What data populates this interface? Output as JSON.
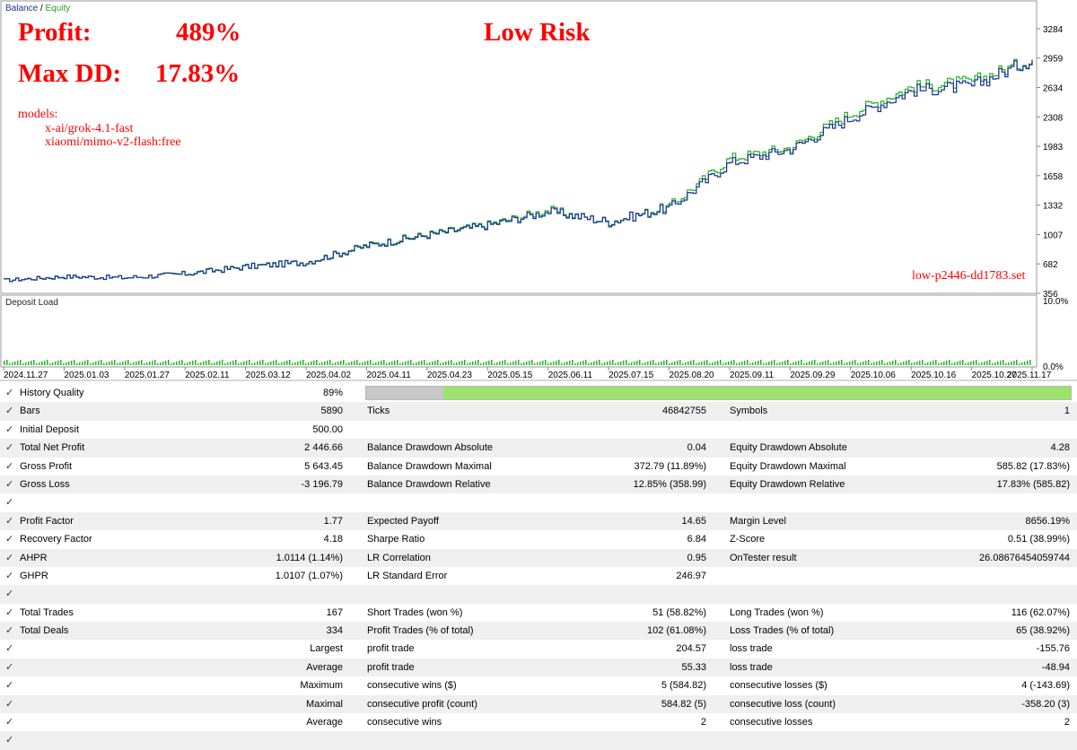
{
  "chart": {
    "legend": {
      "balance": "Balance",
      "separator": " / ",
      "equity": "Equity"
    },
    "profit_label": "Profit:",
    "profit_value": "489%",
    "maxdd_label": "Max DD:",
    "maxdd_value": "17.83%",
    "risk_label": "Low Risk",
    "models_title": "models:",
    "models": [
      "x-ai/grok-4.1-fast",
      "xiaomi/mimo-v2-flash:free"
    ],
    "setfile": "low-p2446-dd1783.set",
    "y_ticks": [
      "3284",
      "2959",
      "2634",
      "2308",
      "1983",
      "1658",
      "1332",
      "1007",
      "682",
      "356"
    ],
    "deposit_load_title": "Deposit Load",
    "deposit_ticks": [
      "10.0%",
      "0.0%"
    ],
    "x_ticks": [
      "2024.11.27",
      "2025.01.03",
      "2025.01.27",
      "2025.02.11",
      "2025.03.12",
      "2025.04.02",
      "2025.04.11",
      "2025.04.23",
      "2025.05.15",
      "2025.06.11",
      "2025.07.15",
      "2025.08.20",
      "2025.09.11",
      "2025.09.29",
      "2025.10.06",
      "2025.10.16",
      "2025.10.27",
      "2025.11.17"
    ],
    "colors": {
      "balance": "#1f2f9c",
      "equity": "#22b422",
      "grid": "#d8d8d8",
      "deposit": "#22b422"
    }
  },
  "chart_data": {
    "type": "line",
    "title": "",
    "x": [
      "2024.11.27",
      "2025.01.03",
      "2025.01.27",
      "2025.02.11",
      "2025.03.12",
      "2025.04.02",
      "2025.04.11",
      "2025.04.23",
      "2025.05.15",
      "2025.06.11",
      "2025.07.15",
      "2025.08.20",
      "2025.09.11",
      "2025.09.29",
      "2025.10.06",
      "2025.10.16",
      "2025.10.27",
      "2025.11.17"
    ],
    "series": [
      {
        "name": "Balance",
        "values": [
          500,
          540,
          530,
          570,
          650,
          700,
          880,
          1000,
          1110,
          1260,
          1150,
          1300,
          1800,
          1950,
          2300,
          2600,
          2650,
          2946
        ]
      },
      {
        "name": "Equity",
        "values": [
          500,
          545,
          528,
          575,
          655,
          705,
          890,
          1010,
          1120,
          1280,
          1140,
          1320,
          1850,
          1970,
          2350,
          2640,
          2700,
          2950
        ]
      }
    ],
    "ylim": [
      356,
      3284
    ],
    "grid": false,
    "legend": "top-left"
  },
  "stats": {
    "history_quality": {
      "label": "History Quality",
      "value": "89%",
      "fraction": 0.89
    },
    "rows": [
      {
        "c1": [
          "Bars",
          "5890"
        ],
        "c2": [
          "Ticks",
          "46842755"
        ],
        "c3": [
          "Symbols",
          "1"
        ]
      },
      {
        "c1": [
          "Initial Deposit",
          "500.00"
        ],
        "c2": [
          "",
          ""
        ],
        "c3": [
          "",
          ""
        ]
      },
      {
        "c1": [
          "Total Net Profit",
          "2 446.66"
        ],
        "c2": [
          "Balance Drawdown Absolute",
          "0.04"
        ],
        "c3": [
          "Equity Drawdown Absolute",
          "4.28"
        ]
      },
      {
        "c1": [
          "Gross Profit",
          "5 643.45"
        ],
        "c2": [
          "Balance Drawdown Maximal",
          "372.79 (11.89%)"
        ],
        "c3": [
          "Equity Drawdown Maximal",
          "585.82 (17.83%)"
        ]
      },
      {
        "c1": [
          "Gross Loss",
          "-3 196.79"
        ],
        "c2": [
          "Balance Drawdown Relative",
          "12.85% (358.99)"
        ],
        "c3": [
          "Equity Drawdown Relative",
          "17.83% (585.82)"
        ]
      },
      {
        "c1": [
          "",
          ""
        ],
        "c2": [
          "",
          ""
        ],
        "c3": [
          "",
          ""
        ]
      },
      {
        "c1": [
          "Profit Factor",
          "1.77"
        ],
        "c2": [
          "Expected Payoff",
          "14.65"
        ],
        "c3": [
          "Margin Level",
          "8656.19%"
        ]
      },
      {
        "c1": [
          "Recovery Factor",
          "4.18"
        ],
        "c2": [
          "Sharpe Ratio",
          "6.84"
        ],
        "c3": [
          "Z-Score",
          "0.51 (38.99%)"
        ]
      },
      {
        "c1": [
          "AHPR",
          "1.0114 (1.14%)"
        ],
        "c2": [
          "LR Correlation",
          "0.95"
        ],
        "c3": [
          "OnTester result",
          "26.08676454059744"
        ]
      },
      {
        "c1": [
          "GHPR",
          "1.0107 (1.07%)"
        ],
        "c2": [
          "LR Standard Error",
          "246.97"
        ],
        "c3": [
          "",
          ""
        ]
      },
      {
        "c1": [
          "",
          ""
        ],
        "c2": [
          "",
          ""
        ],
        "c3": [
          "",
          ""
        ]
      },
      {
        "c1": [
          "Total Trades",
          "167"
        ],
        "c2": [
          "Short Trades (won %)",
          "51 (58.82%)"
        ],
        "c3": [
          "Long Trades (won %)",
          "116 (62.07%)"
        ]
      },
      {
        "c1": [
          "Total Deals",
          "334"
        ],
        "c2": [
          "Profit Trades (% of total)",
          "102 (61.08%)"
        ],
        "c3": [
          "Loss Trades (% of total)",
          "65 (38.92%)"
        ]
      },
      {
        "c1": [
          "",
          "Largest"
        ],
        "c2": [
          "profit trade",
          "204.57"
        ],
        "c3": [
          "loss trade",
          "-155.76"
        ]
      },
      {
        "c1": [
          "",
          "Average"
        ],
        "c2": [
          "profit trade",
          "55.33"
        ],
        "c3": [
          "loss trade",
          "-48.94"
        ]
      },
      {
        "c1": [
          "",
          "Maximum"
        ],
        "c2": [
          "consecutive wins ($)",
          "5 (584.82)"
        ],
        "c3": [
          "consecutive losses ($)",
          "4 (-143.69)"
        ]
      },
      {
        "c1": [
          "",
          "Maximal"
        ],
        "c2": [
          "consecutive profit (count)",
          "584.82 (5)"
        ],
        "c3": [
          "consecutive loss (count)",
          "-358.20 (3)"
        ]
      },
      {
        "c1": [
          "",
          "Average"
        ],
        "c2": [
          "consecutive wins",
          "2"
        ],
        "c3": [
          "consecutive losses",
          "2"
        ]
      },
      {
        "c1": [
          "",
          ""
        ],
        "c2": [
          "",
          ""
        ],
        "c3": [
          "",
          ""
        ]
      }
    ],
    "check_icon": "checkmark-icon"
  }
}
